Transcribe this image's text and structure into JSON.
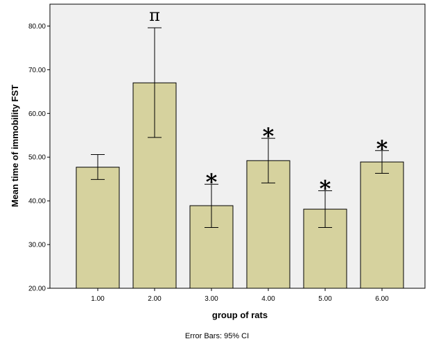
{
  "chart_data": {
    "type": "bar",
    "xlabel": "group of rats",
    "ylabel": "Mean time of immobility FST",
    "ylim": [
      20,
      85
    ],
    "yticks": [
      "20.00",
      "30.00",
      "40.00",
      "50.00",
      "60.00",
      "70.00",
      "80.00"
    ],
    "categories": [
      "1.00",
      "2.00",
      "3.00",
      "4.00",
      "5.00",
      "6.00"
    ],
    "values": [
      47.7,
      67.0,
      38.9,
      49.2,
      38.1,
      48.9
    ],
    "ci_low": [
      44.9,
      54.5,
      33.9,
      44.1,
      33.9,
      46.3
    ],
    "ci_high": [
      50.6,
      79.6,
      43.8,
      54.3,
      42.3,
      51.5
    ],
    "markers": [
      "",
      "π",
      "*",
      "*",
      "*",
      "*"
    ],
    "footnote": "Error Bars: 95% CI",
    "colors": {
      "bar_fill": "#d6d29e",
      "plot_background": "#f0f0f0",
      "stroke": "#000000"
    },
    "grid": false
  }
}
